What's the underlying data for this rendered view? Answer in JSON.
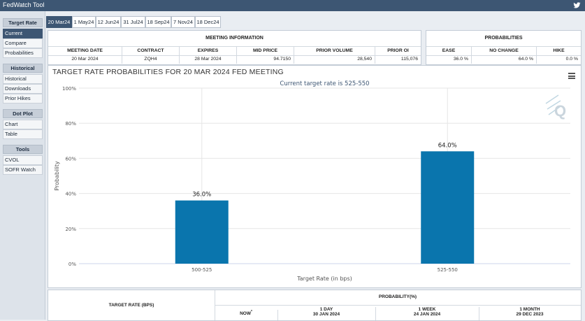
{
  "app": {
    "title": "FedWatch Tool"
  },
  "sidebar": {
    "sections": [
      {
        "title": "Target Rate",
        "items": [
          "Current",
          "Compare",
          "Probabilities"
        ]
      },
      {
        "title": "Historical",
        "items": [
          "Historical",
          "Downloads",
          "Prior Hikes"
        ]
      },
      {
        "title": "Dot Plot",
        "items": [
          "Chart",
          "Table"
        ]
      },
      {
        "title": "Tools",
        "items": [
          "CVOL",
          "SOFR Watch"
        ]
      }
    ],
    "active_item": "Current"
  },
  "tabs": [
    "20 Mar24",
    "1 May24",
    "12 Jun24",
    "31 Jul24",
    "18 Sep24",
    "7 Nov24",
    "18 Dec24"
  ],
  "meeting_info": {
    "heading": "MEETING INFORMATION",
    "columns": [
      "MEETING DATE",
      "CONTRACT",
      "EXPIRES",
      "MID PRICE",
      "PRIOR VOLUME",
      "PRIOR OI"
    ],
    "values": [
      "20 Mar 2024",
      "ZQH4",
      "28 Mar 2024",
      "94.7150",
      "28,540",
      "115,076"
    ]
  },
  "probabilities": {
    "heading": "PROBABILITIES",
    "columns": [
      "EASE",
      "NO CHANGE",
      "HIKE"
    ],
    "values": [
      "36.0 %",
      "64.0 %",
      "0.0 %"
    ]
  },
  "chart_data": {
    "type": "bar",
    "title": "TARGET RATE PROBABILITIES FOR 20 MAR 2024 FED MEETING",
    "subtitle": "Current target rate is 525-550",
    "categories": [
      "500-525",
      "525-550"
    ],
    "values": [
      36.0,
      64.0
    ],
    "data_labels": [
      "36.0%",
      "64.0%"
    ],
    "xlabel": "Target Rate (in bps)",
    "ylabel": "Probability",
    "ylim": [
      0,
      100
    ],
    "yticks": [
      "0%",
      "20%",
      "40%",
      "60%",
      "80%",
      "100%"
    ],
    "grid": true,
    "bar_color": "#0a75ad"
  },
  "bottom_table": {
    "first_col": "TARGET RATE (BPS)",
    "group": "PROBABILITY(%)",
    "now": "NOW",
    "now_mark": "*",
    "cols": [
      {
        "label": "1 DAY",
        "date": "30 JAN 2024"
      },
      {
        "label": "1 WEEK",
        "date": "24 JAN 2024"
      },
      {
        "label": "1 MONTH",
        "date": "29 DEC 2023"
      }
    ]
  },
  "colors": {
    "nav": "#3d5673",
    "bar": "#0a75ad"
  }
}
